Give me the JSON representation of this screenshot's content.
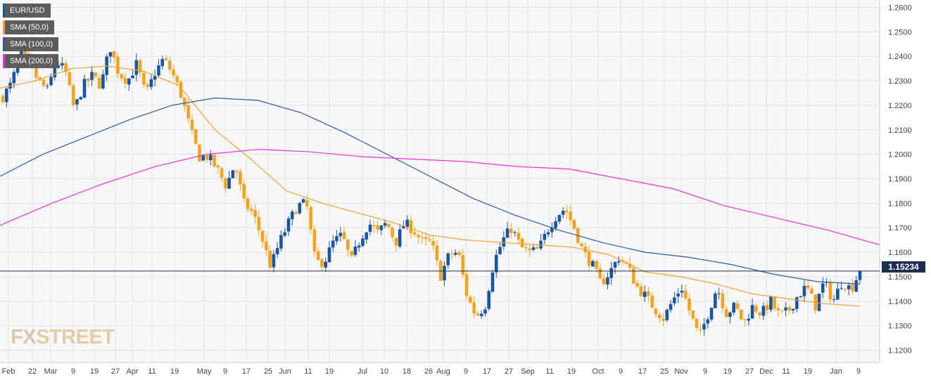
{
  "chart_data": {
    "type": "candlestick",
    "title": "",
    "symbol": "EUR/USD",
    "xlabel": "",
    "ylabel": "",
    "ylim": [
      1.115,
      1.263
    ],
    "y_ticks": [
      1.12,
      1.13,
      1.14,
      1.15,
      1.16,
      1.17,
      1.18,
      1.19,
      1.2,
      1.21,
      1.22,
      1.23,
      1.24,
      1.25,
      1.26
    ],
    "y_tick_labels": [
      "1.1200",
      "1.1300",
      "1.1400",
      "1.1500",
      "1.1600",
      "1.1700",
      "1.1800",
      "1.1900",
      "1.2000",
      "1.2100",
      "1.2200",
      "1.2300",
      "1.2400",
      "1.2500",
      "1.2600"
    ],
    "x_tick_labels": [
      "Feb",
      "22",
      "Mar",
      "9",
      "19",
      "27",
      "Apr",
      "11",
      "19",
      "May",
      "9",
      "17",
      "25",
      "Jun",
      "11",
      "19",
      "Jul",
      "10",
      "18",
      "26",
      "Aug",
      "9",
      "17",
      "27",
      "Sep",
      "11",
      "19",
      "Oct",
      "9",
      "17",
      "25",
      "Nov",
      "9",
      "19",
      "27",
      "Dec",
      "11",
      "19",
      "Jan",
      "9"
    ],
    "grid": true,
    "legend_position": "top-left",
    "last_price": 1.15234,
    "last_price_label": "1.15234",
    "colors": {
      "up": "#1a55a4",
      "down": "#f5a21d",
      "sma50": "#f0a030",
      "sma100": "#2d5aa0",
      "sma200": "#ee2de0",
      "price_line": "#1c2e52"
    },
    "ohlc_anchor_closes": [
      [
        1.2235,
        1.229,
        1.242,
        1.236,
        1.23,
        1.226,
        1.238,
        1.234,
        1.218,
        1.228,
        1.232,
        1.228,
        1.244,
        1.233,
        1.23,
        1.237,
        1.224,
        1.233,
        1.239,
        1.233,
        1.224,
        1.21,
        1.199,
        1.199,
        1.194,
        1.187,
        1.196,
        1.18,
        1.176,
        1.166,
        1.154,
        1.164,
        1.172,
        1.179,
        1.18,
        1.156,
        1.156,
        1.164,
        1.167,
        1.156,
        1.165,
        1.172,
        1.168,
        1.172,
        1.164,
        1.172,
        1.169,
        1.164,
        1.164,
        1.15,
        1.159,
        1.16,
        1.142,
        1.134,
        1.138,
        1.156,
        1.165,
        1.17,
        1.162,
        1.16,
        1.161,
        1.169,
        1.175,
        1.178,
        1.17,
        1.16,
        1.155,
        1.147,
        1.152,
        1.158,
        1.154,
        1.146,
        1.142,
        1.137,
        1.133,
        1.14,
        1.146,
        1.135,
        1.125,
        1.135,
        1.146,
        1.135,
        1.138,
        1.131,
        1.138,
        1.135,
        1.14,
        1.134,
        1.136,
        1.142,
        1.146,
        1.138,
        1.148,
        1.14,
        1.148,
        1.145,
        1.1523
      ]
    ],
    "series": [
      {
        "name": "SMA (50,0)",
        "values": [
          1.227,
          1.23,
          1.235,
          1.236,
          1.234,
          1.228,
          1.21,
          1.198,
          1.185,
          1.18,
          1.176,
          1.172,
          1.167,
          1.165,
          1.164,
          1.163,
          1.162,
          1.159,
          1.152,
          1.15,
          1.147,
          1.143,
          1.141,
          1.139,
          1.138
        ]
      },
      {
        "name": "SMA (100,0)",
        "values": [
          1.191,
          1.2,
          1.207,
          1.214,
          1.22,
          1.223,
          1.222,
          1.217,
          1.209,
          1.2,
          1.191,
          1.182,
          1.175,
          1.169,
          1.164,
          1.16,
          1.158,
          1.155,
          1.151,
          1.148,
          1.147
        ]
      },
      {
        "name": "SMA (200,0)",
        "values": [
          1.171,
          1.18,
          1.188,
          1.195,
          1.2,
          1.202,
          1.201,
          1.199,
          1.198,
          1.197,
          1.195,
          1.194,
          1.19,
          1.186,
          1.179,
          1.174,
          1.169,
          1.163
        ]
      }
    ]
  },
  "legend": {
    "items": [
      {
        "label": "EUR/USD",
        "color": "#1a55a4"
      },
      {
        "label": "SMA (50,0)",
        "color": "#f0a030"
      },
      {
        "label": "SMA (100,0)",
        "color": "#2d5aa0"
      },
      {
        "label": "SMA (200,0)",
        "color": "#ee2de0"
      }
    ]
  },
  "watermark": {
    "fx": "FX",
    "rest": "STREET"
  }
}
